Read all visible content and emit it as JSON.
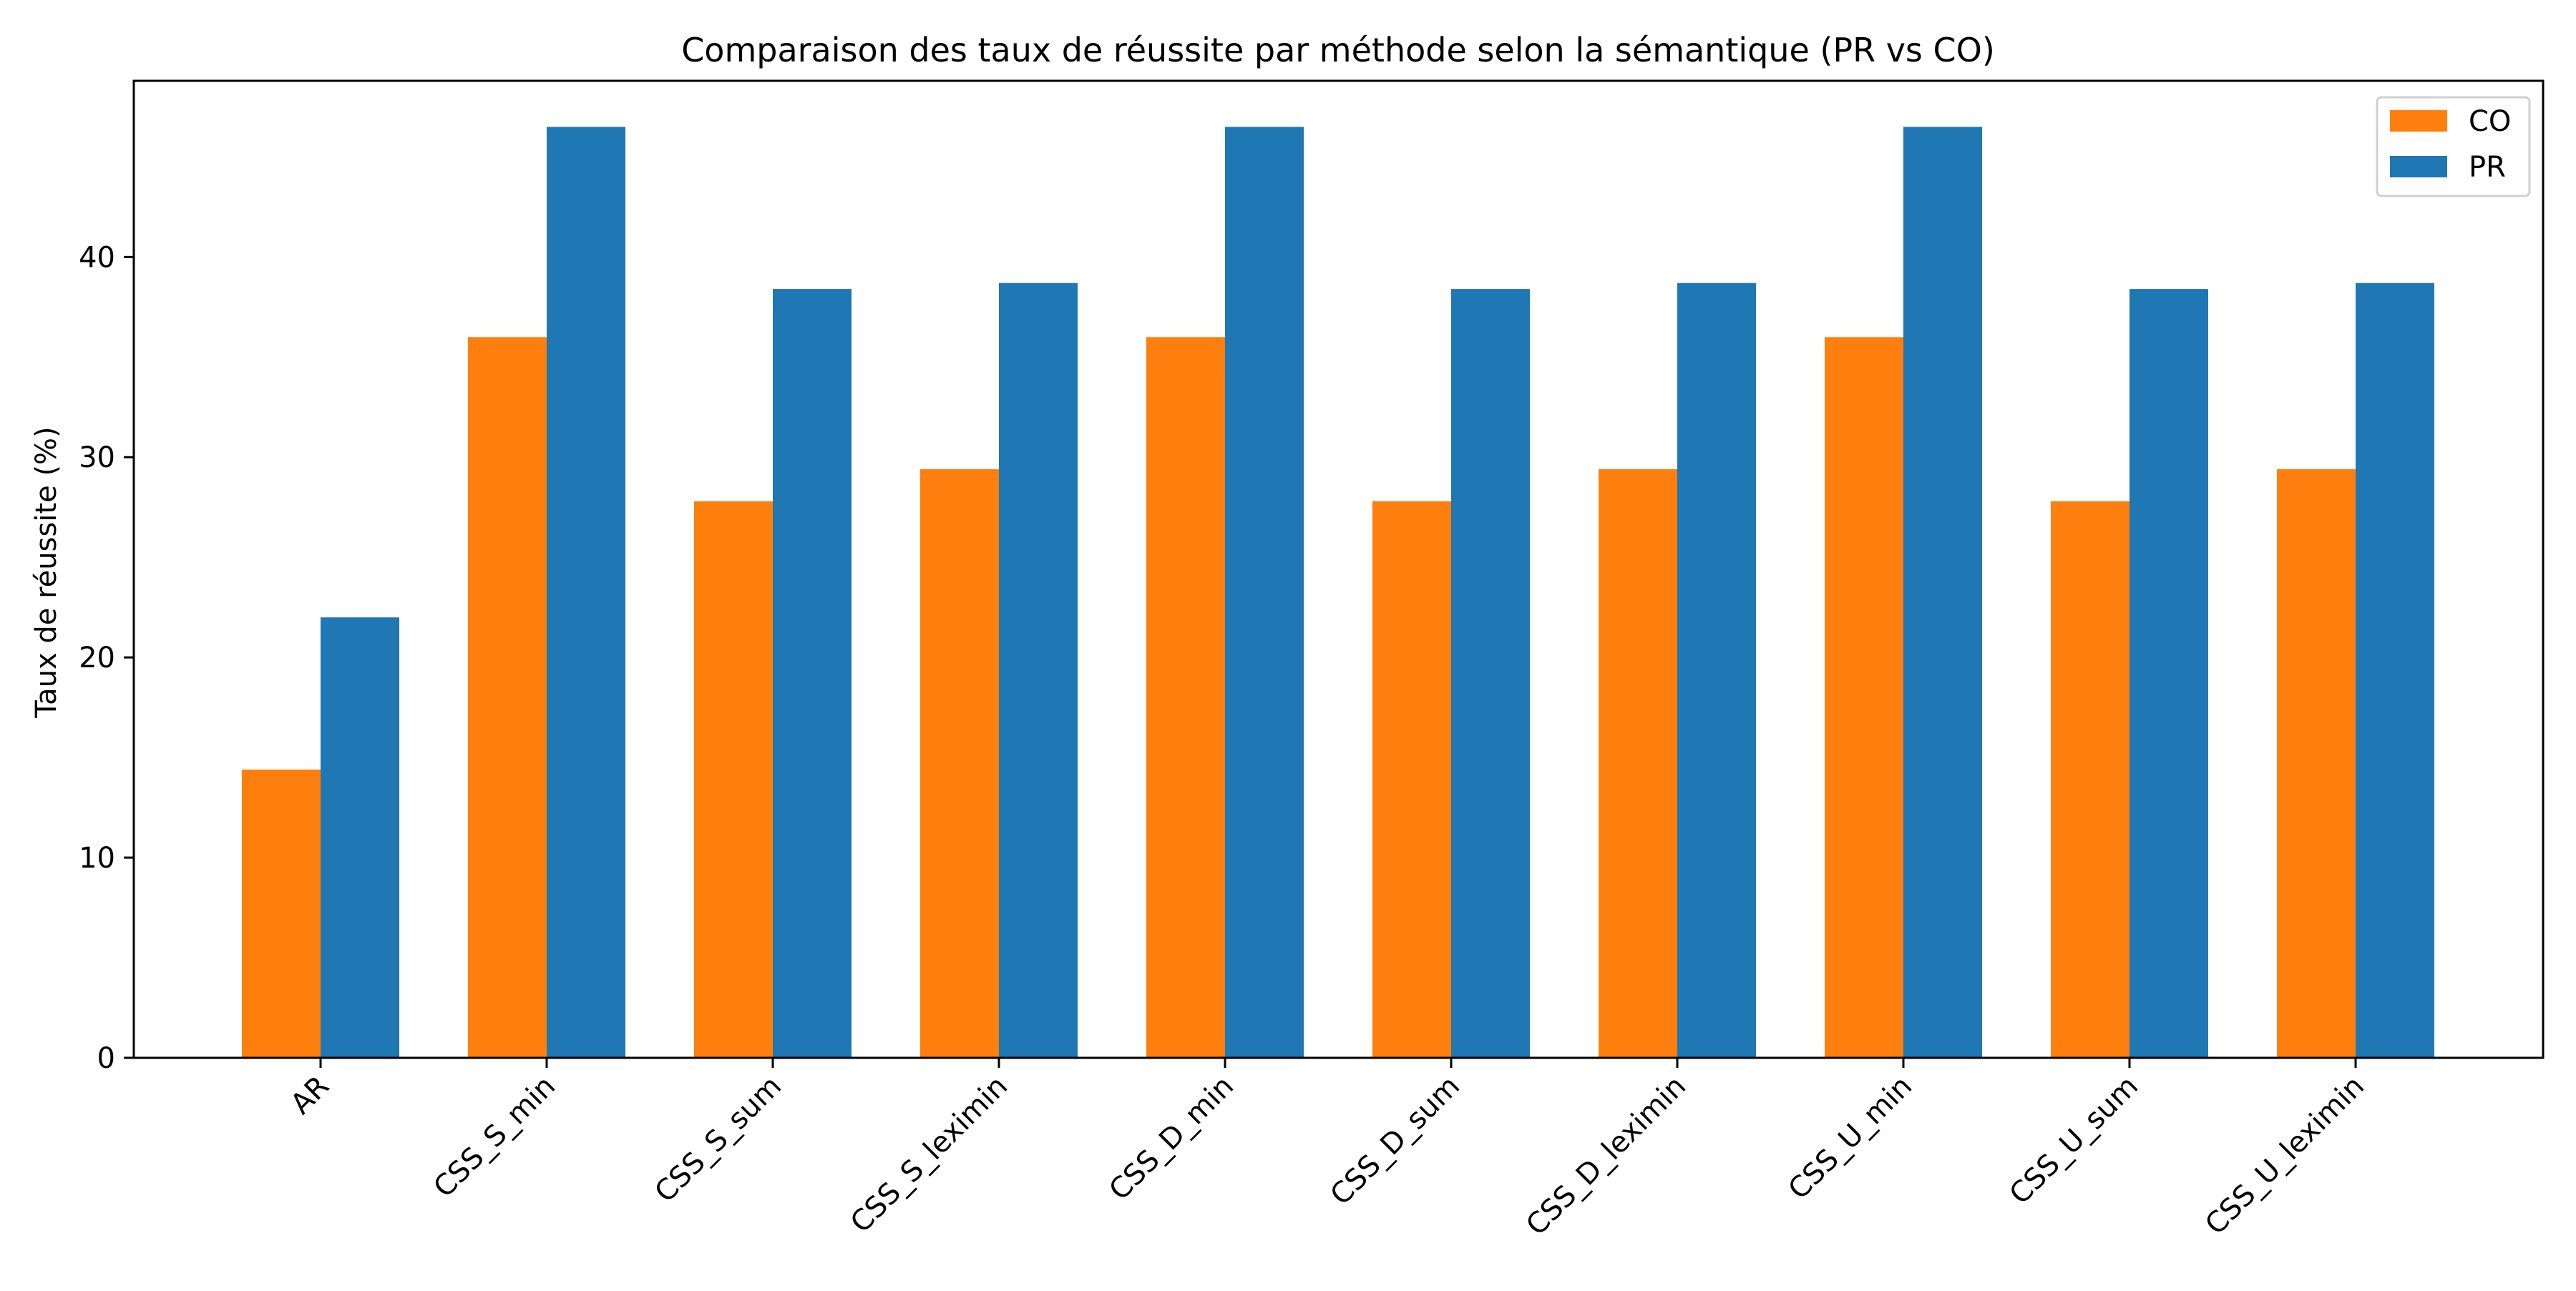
{
  "chart_data": {
    "type": "bar",
    "title": "Comparaison des taux de réussite par méthode selon la sémantique (PR vs CO)",
    "xlabel": "",
    "ylabel": "Taux de réussite (%)",
    "categories": [
      "AR",
      "CSS_S_min",
      "CSS_S_sum",
      "CSS_S_leximin",
      "CSS_D_min",
      "CSS_D_sum",
      "CSS_D_leximin",
      "CSS_U_min",
      "CSS_U_sum",
      "CSS_U_leximin"
    ],
    "series": [
      {
        "name": "CO",
        "color": "#ff7f0e",
        "values": [
          14.4,
          36.0,
          27.8,
          29.4,
          36.0,
          27.8,
          29.4,
          36.0,
          27.8,
          29.4
        ]
      },
      {
        "name": "PR",
        "color": "#1f77b4",
        "values": [
          22.0,
          46.5,
          38.4,
          38.7,
          46.5,
          38.4,
          38.7,
          46.5,
          38.4,
          38.7
        ]
      }
    ],
    "ylim": [
      0,
      48.8
    ],
    "yticks": [
      0,
      10,
      20,
      30,
      40
    ],
    "grid": false,
    "legend_position": "top-right"
  }
}
